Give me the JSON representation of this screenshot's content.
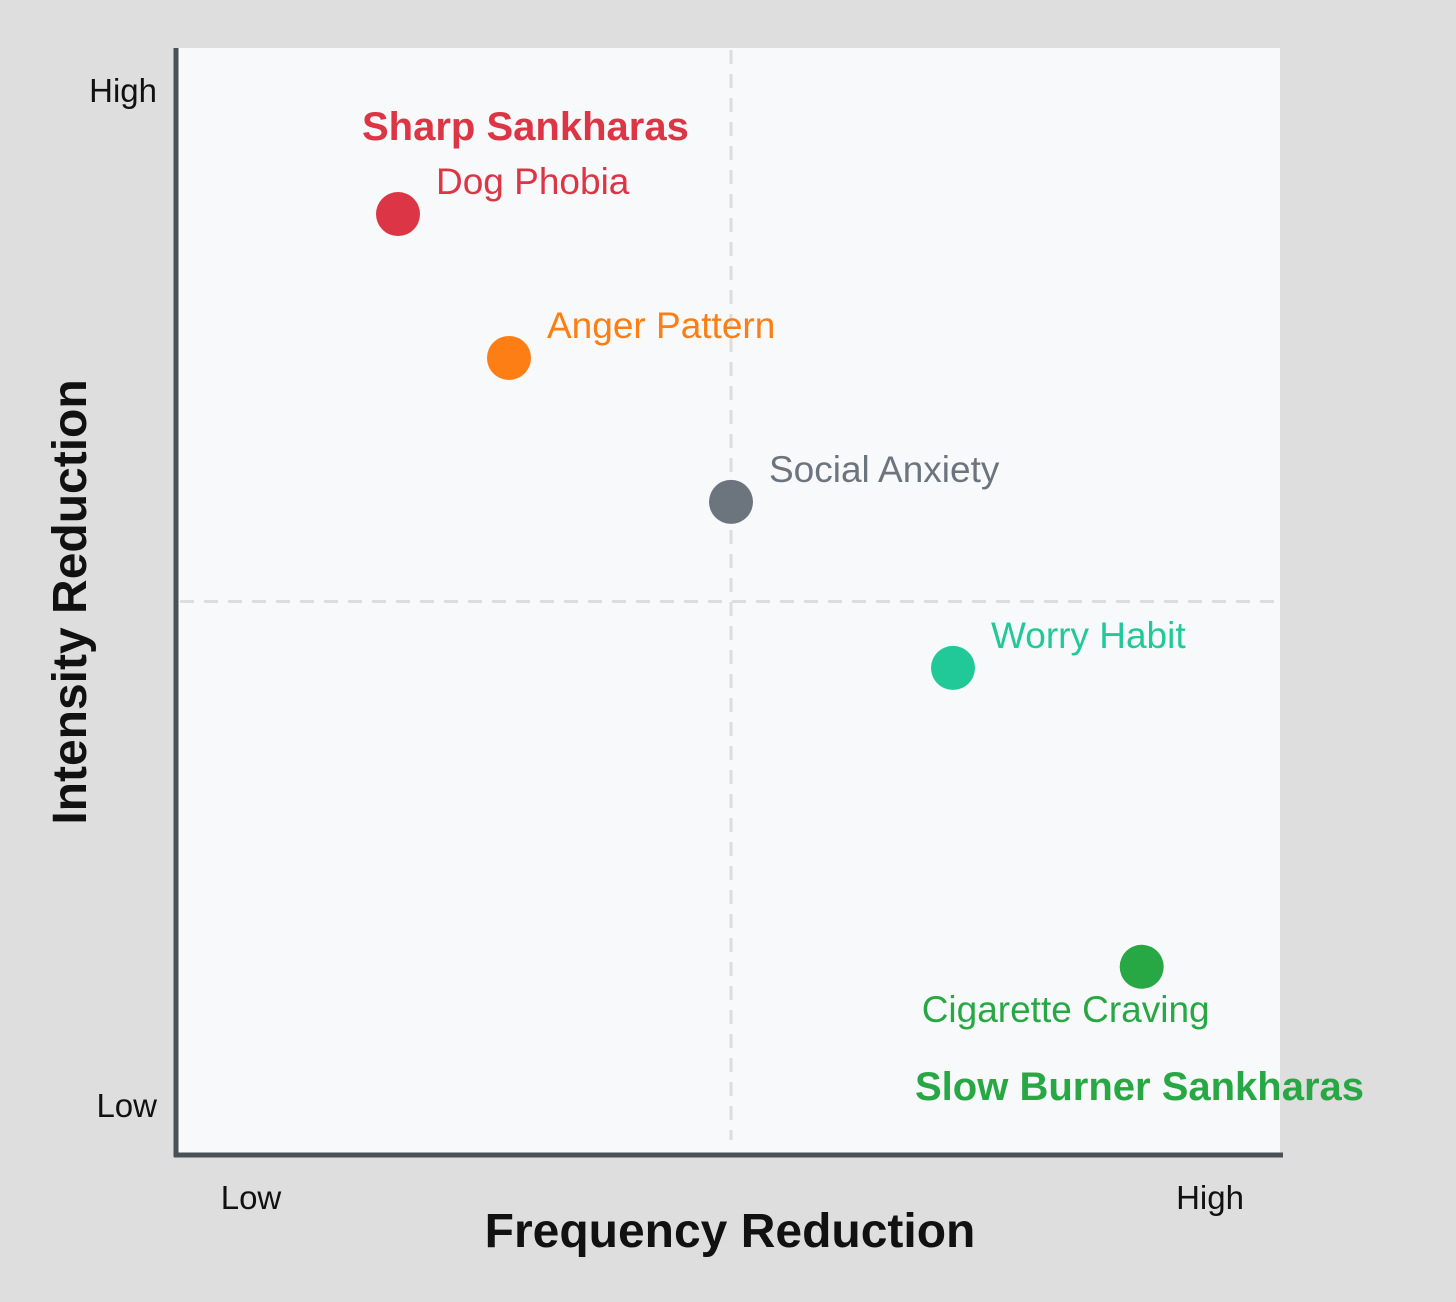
{
  "chart_data": {
    "type": "scatter",
    "title": "",
    "xlabel": "Frequency Reduction",
    "ylabel": "Intensity Reduction",
    "xlim": [
      0,
      10
    ],
    "ylim": [
      0,
      10
    ],
    "x_tick_labels": {
      "low": "Low",
      "high": "High"
    },
    "y_tick_labels": {
      "low": "Low",
      "high": "High"
    },
    "divider": {
      "x": 5,
      "y": 5
    },
    "points": [
      {
        "label": "Dog Phobia",
        "x": 2.0,
        "y": 8.5,
        "color": "#dc3545"
      },
      {
        "label": "Anger Pattern",
        "x": 3.0,
        "y": 7.2,
        "color": "#fd7e14"
      },
      {
        "label": "Social Anxiety",
        "x": 5.0,
        "y": 5.9,
        "color": "#6c757d"
      },
      {
        "label": "Worry Habit",
        "x": 7.0,
        "y": 4.4,
        "color": "#20c997"
      },
      {
        "label": "Cigarette Craving",
        "x": 8.7,
        "y": 1.7,
        "color": "#28a745"
      }
    ],
    "quadrant_labels": [
      {
        "text": "Sharp Sankharas",
        "color": "#dc3545"
      },
      {
        "text": "Slow Burner Sankharas",
        "color": "#28a745"
      }
    ]
  }
}
